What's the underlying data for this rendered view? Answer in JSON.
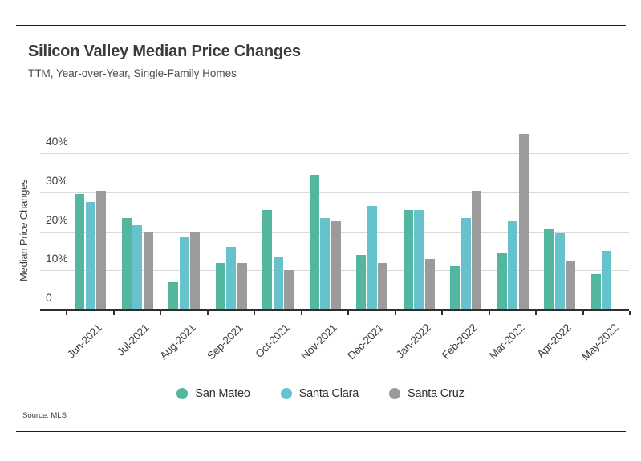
{
  "header": {
    "title": "Silicon Valley Median Price Changes",
    "subtitle": "TTM, Year-over-Year, Single-Family Homes"
  },
  "footer": {
    "source": "Source: MLS"
  },
  "colors": {
    "san_mateo": "#52b79e",
    "santa_clara": "#66c2cd",
    "santa_cruz": "#9b9b9b",
    "axis": "#2e2e2e",
    "gridline": "#dadada"
  },
  "chart_data": {
    "type": "bar",
    "title": "Silicon Valley Median Price Changes",
    "subtitle": "TTM, Year-over-Year, Single-Family Homes",
    "xlabel": "",
    "ylabel": "Median Price Changes",
    "ylim": [
      0,
      45.5
    ],
    "grid": true,
    "legend_position": "bottom",
    "yticks": [
      {
        "label": "40%",
        "value": 40
      },
      {
        "label": "30%",
        "value": 30
      },
      {
        "label": "20%",
        "value": 20
      },
      {
        "label": "10%",
        "value": 10
      },
      {
        "label": "0",
        "value": 0
      }
    ],
    "categories": [
      "Jun-2021",
      "Jul-2021",
      "Aug-2021",
      "Sep-2021",
      "Oct-2021",
      "Nov-2021",
      "Dec-2021",
      "Jan-2022",
      "Feb-2022",
      "Mar-2022",
      "Apr-2022",
      "May-2022"
    ],
    "series": [
      {
        "name": "San Mateo",
        "color": "#52b79e",
        "values": [
          29.5,
          23.5,
          7,
          12,
          25.5,
          34.5,
          14,
          25.5,
          11,
          14.5,
          20.5,
          9
        ]
      },
      {
        "name": "Santa Clara",
        "color": "#66c2cd",
        "values": [
          27.5,
          21.5,
          18.5,
          16,
          13.5,
          23.5,
          26.5,
          25.5,
          23.5,
          22.5,
          19.5,
          15
        ]
      },
      {
        "name": "Santa Cruz",
        "color": "#9b9b9b",
        "values": [
          30.5,
          20,
          20,
          12,
          10,
          22.5,
          12,
          13,
          30.5,
          45,
          12.5,
          null
        ]
      }
    ],
    "source": "Source: MLS"
  }
}
